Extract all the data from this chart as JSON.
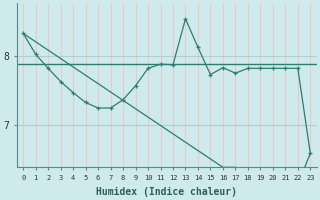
{
  "xlabel": "Humidex (Indice chaleur)",
  "background_color": "#ceeaeb",
  "line_color": "#2d7d72",
  "grid_color_v": "#e8c8c8",
  "grid_color_h": "#b0d0d0",
  "x_data": [
    0,
    1,
    2,
    3,
    4,
    5,
    6,
    7,
    8,
    9,
    10,
    11,
    12,
    13,
    14,
    15,
    16,
    17,
    18,
    19,
    20,
    21,
    22,
    23
  ],
  "y_curve": [
    8.32,
    8.02,
    7.82,
    7.63,
    7.47,
    7.33,
    7.25,
    7.25,
    7.37,
    7.57,
    7.82,
    7.88,
    7.87,
    8.53,
    8.12,
    7.73,
    7.83,
    7.75,
    7.82,
    7.82,
    7.82,
    7.82,
    7.82,
    6.6
  ],
  "y_line": [
    8.32,
    8.2,
    8.08,
    7.96,
    7.84,
    7.72,
    7.6,
    7.48,
    7.36,
    7.24,
    7.12,
    7.0,
    6.88,
    6.76,
    6.64,
    6.52,
    6.4,
    6.4,
    6.35,
    6.3,
    6.25,
    6.2,
    6.15,
    6.6
  ],
  "yticks": [
    7,
    8
  ],
  "xticks": [
    0,
    1,
    2,
    3,
    4,
    5,
    6,
    7,
    8,
    9,
    10,
    11,
    12,
    13,
    14,
    15,
    16,
    17,
    18,
    19,
    20,
    21,
    22,
    23
  ],
  "xlim": [
    -0.5,
    23.5
  ],
  "ylim": [
    6.4,
    8.75
  ],
  "hline_y": 7.88
}
